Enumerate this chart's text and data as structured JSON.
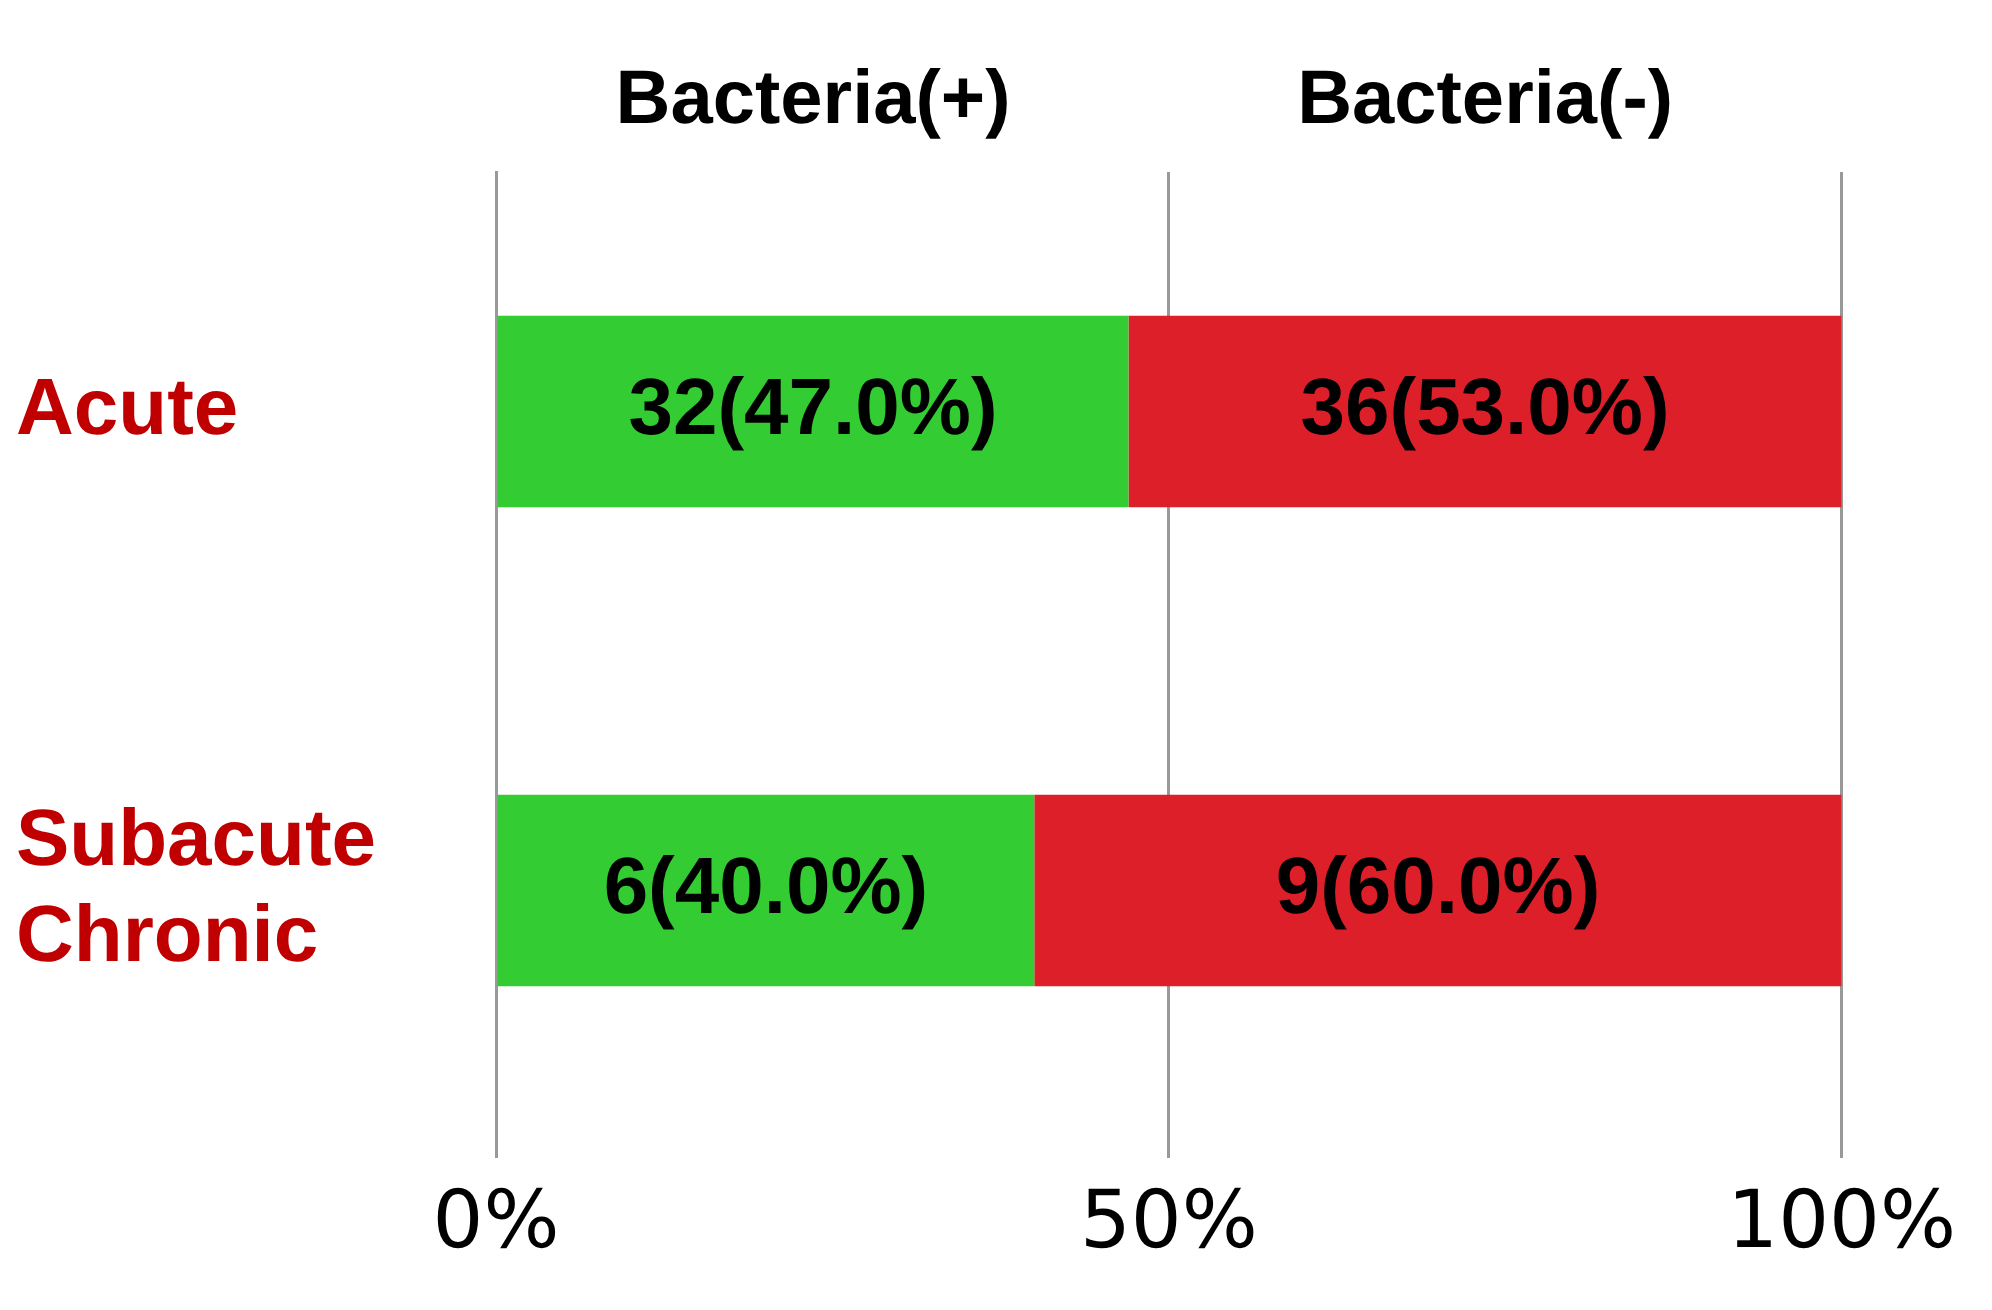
{
  "chart_data": {
    "type": "bar",
    "orientation": "horizontal",
    "stacked": true,
    "categories": [
      "Acute",
      "Subacute Chronic"
    ],
    "series": [
      {
        "name": "Bacteria(+)",
        "color": "#33cc33",
        "values": [
          47.0,
          40.0
        ],
        "value_labels": [
          "32(47.0%)",
          "6(40.0%)"
        ]
      },
      {
        "name": "Bacteria(-)",
        "color": "#dd1f2a",
        "values": [
          53.0,
          60.0
        ],
        "value_labels": [
          "36(53.0%)",
          "9(60.0%)"
        ]
      }
    ],
    "xlim": [
      0,
      100
    ],
    "xticks": [
      {
        "value": 0,
        "label": "0%"
      },
      {
        "value": 50,
        "label": "50%"
      },
      {
        "value": 100,
        "label": "100%"
      }
    ],
    "grid": "x"
  }
}
